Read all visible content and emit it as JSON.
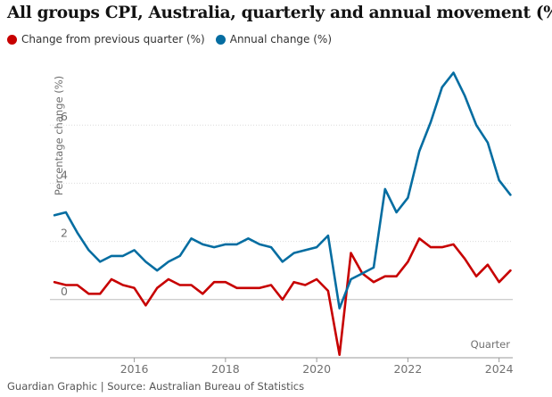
{
  "chart_data": {
    "type": "line",
    "title": "All groups CPI, Australia, quarterly and annual movement (%)",
    "ylabel": "Percentage change (%)",
    "xlabel": "Quarter",
    "ylim": [
      -2,
      8
    ],
    "xlim": [
      2014.15,
      2024.3
    ],
    "yticks": [
      0,
      2,
      4,
      6
    ],
    "xticks": [
      2016,
      2018,
      2020,
      2022,
      2024
    ],
    "grid": true,
    "legend_position": "top-left",
    "x": [
      2014.25,
      2014.5,
      2014.75,
      2015.0,
      2015.25,
      2015.5,
      2015.75,
      2016.0,
      2016.25,
      2016.5,
      2016.75,
      2017.0,
      2017.25,
      2017.5,
      2017.75,
      2018.0,
      2018.25,
      2018.5,
      2018.75,
      2019.0,
      2019.25,
      2019.5,
      2019.75,
      2020.0,
      2020.25,
      2020.5,
      2020.75,
      2021.0,
      2021.25,
      2021.5,
      2021.75,
      2022.0,
      2022.25,
      2022.5,
      2022.75,
      2023.0,
      2023.25,
      2023.5,
      2023.75,
      2024.0,
      2024.25
    ],
    "series": [
      {
        "name": "Change from previous quarter (%)",
        "color": "#c70000",
        "values": [
          0.6,
          0.5,
          0.5,
          0.2,
          0.2,
          0.7,
          0.5,
          0.4,
          -0.2,
          0.4,
          0.7,
          0.5,
          0.5,
          0.2,
          0.6,
          0.6,
          0.4,
          0.4,
          0.4,
          0.5,
          0.0,
          0.6,
          0.5,
          0.7,
          0.3,
          -1.9,
          1.6,
          0.9,
          0.6,
          0.8,
          0.8,
          1.3,
          2.1,
          1.8,
          1.8,
          1.9,
          1.4,
          0.8,
          1.2,
          0.6,
          1.0
        ]
      },
      {
        "name": "Annual change (%)",
        "color": "#056da1",
        "values": [
          2.9,
          3.0,
          2.3,
          1.7,
          1.3,
          1.5,
          1.5,
          1.7,
          1.3,
          1.0,
          1.3,
          1.5,
          2.1,
          1.9,
          1.8,
          1.9,
          1.9,
          2.1,
          1.9,
          1.8,
          1.3,
          1.6,
          1.7,
          1.8,
          2.2,
          -0.3,
          0.7,
          0.9,
          1.1,
          3.8,
          3.0,
          3.5,
          5.1,
          6.1,
          7.3,
          7.8,
          7.0,
          6.0,
          5.4,
          4.1,
          3.6
        ]
      }
    ]
  },
  "legend": {
    "quarterly_label": "Change from previous quarter (%)",
    "annual_label": "Annual change (%)",
    "quarterly_color": "#c70000",
    "annual_color": "#056da1"
  },
  "footer": {
    "credit": "Guardian Graphic | Source: Australian Bureau of Statistics"
  }
}
